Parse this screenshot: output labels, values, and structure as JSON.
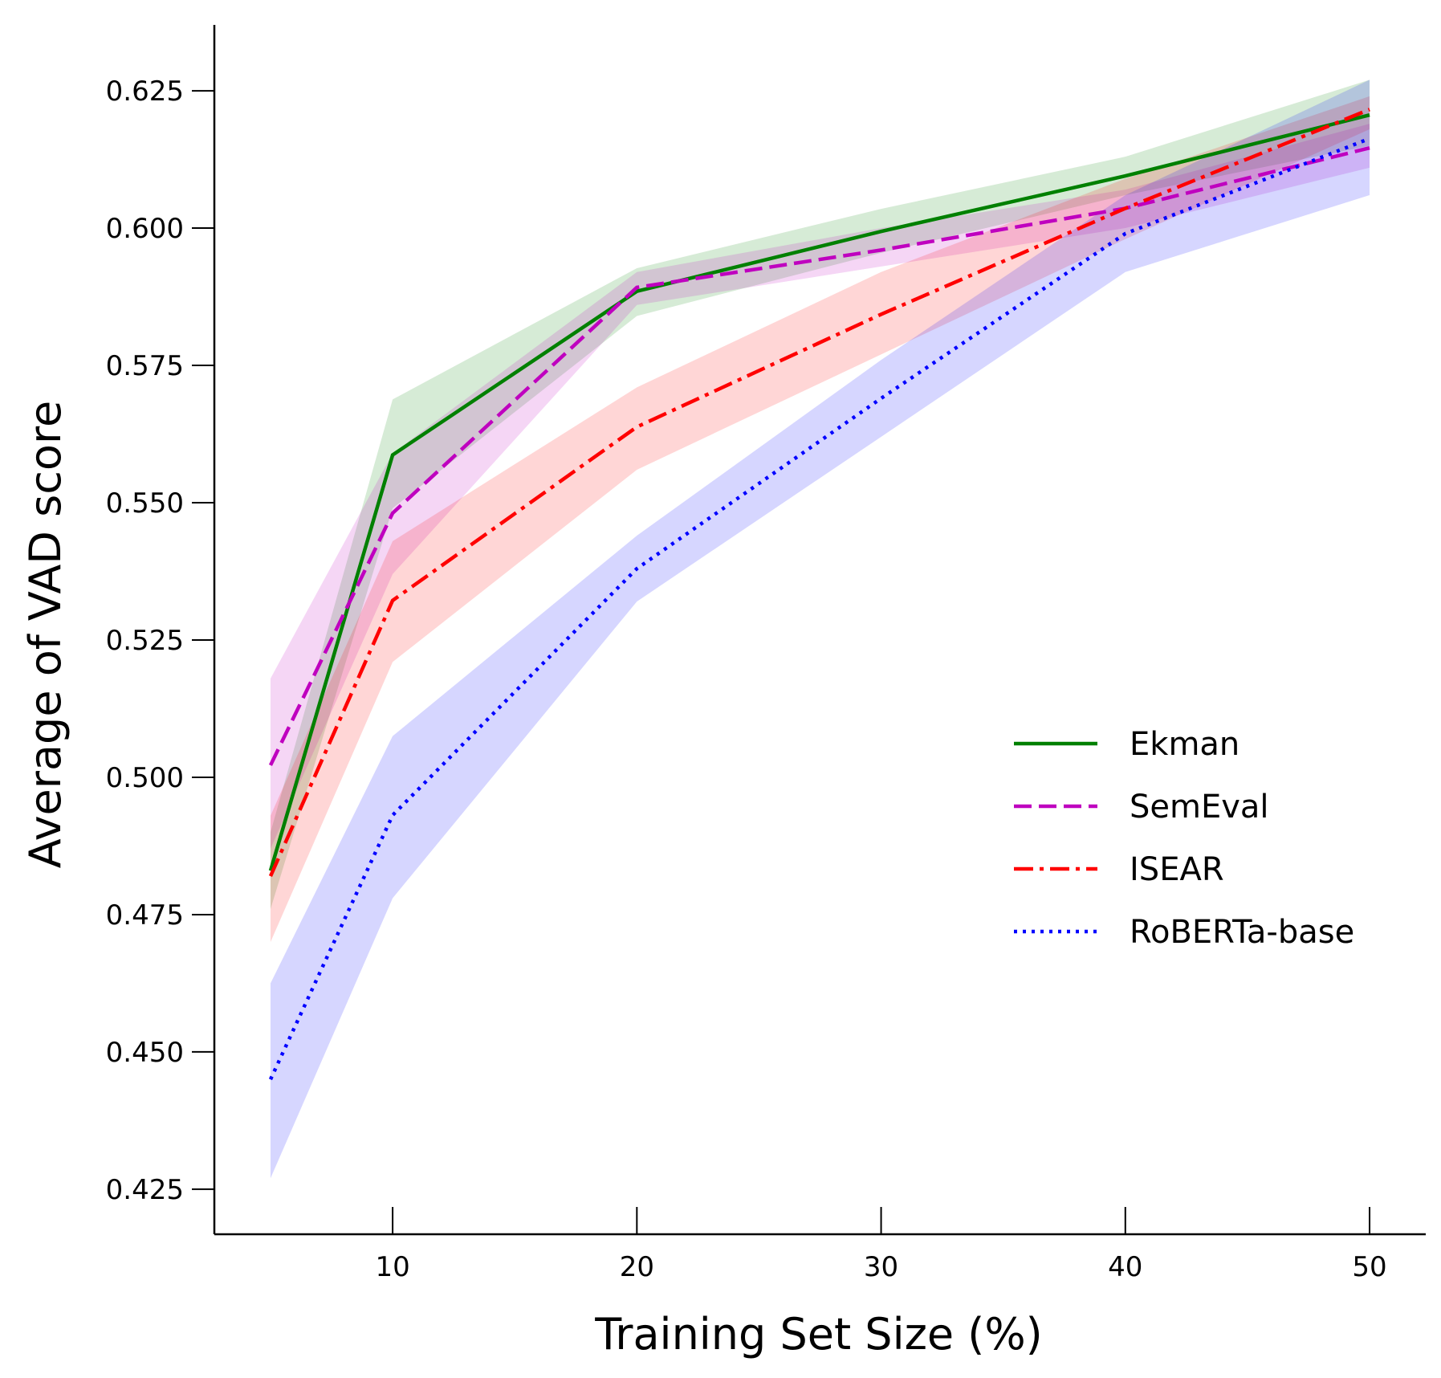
{
  "chart_data": {
    "type": "line",
    "title": "",
    "xlabel": "Training Set Size (%)",
    "ylabel": "Average of VAD score",
    "xlim": [
      2.7,
      52.3
    ],
    "ylim": [
      0.4168,
      0.637
    ],
    "xticks": [
      10,
      20,
      30,
      40,
      50
    ],
    "xtick_labels": [
      "10",
      "20",
      "30",
      "40",
      "50"
    ],
    "yticks": [
      0.425,
      0.45,
      0.475,
      0.5,
      0.525,
      0.55,
      0.575,
      0.6,
      0.625
    ],
    "ytick_labels": [
      "0.425",
      "0.450",
      "0.475",
      "0.500",
      "0.525",
      "0.550",
      "0.575",
      "0.600",
      "0.625"
    ],
    "grid": false,
    "legend_position": "center-right",
    "x": [
      5,
      10,
      20,
      30,
      40,
      50
    ],
    "series": [
      {
        "name": "Ekman",
        "color": "#008000",
        "style": "solid",
        "values": [
          0.483,
          0.5587,
          0.5885,
          0.5994,
          0.6095,
          0.6206
        ],
        "upper": [
          0.49,
          0.5688,
          0.5927,
          0.6035,
          0.613,
          0.627
        ],
        "lower": [
          0.476,
          0.549,
          0.584,
          0.5955,
          0.606,
          0.615
        ]
      },
      {
        "name": "SemEval",
        "color": "#bf00bf",
        "style": "dashed",
        "values": [
          0.5022,
          0.5481,
          0.5892,
          0.596,
          0.6036,
          0.6146
        ],
        "upper": [
          0.518,
          0.559,
          0.592,
          0.6,
          0.607,
          0.619
        ],
        "lower": [
          0.487,
          0.537,
          0.586,
          0.593,
          0.6,
          0.611
        ]
      },
      {
        "name": "ISEAR",
        "color": "#ff0000",
        "style": "dashdot",
        "values": [
          0.482,
          0.5322,
          0.5638,
          0.5843,
          0.6036,
          0.6216
        ],
        "upper": [
          0.493,
          0.543,
          0.571,
          0.592,
          0.609,
          0.624
        ],
        "lower": [
          0.47,
          0.521,
          0.556,
          0.577,
          0.598,
          0.618
        ]
      },
      {
        "name": "RoBERTa-base",
        "color": "#0000ff",
        "style": "dotted",
        "values": [
          0.445,
          0.4931,
          0.538,
          0.569,
          0.599,
          0.6163
        ],
        "upper": [
          0.4625,
          0.5075,
          0.544,
          0.576,
          0.606,
          0.627
        ],
        "lower": [
          0.427,
          0.478,
          0.532,
          0.562,
          0.592,
          0.606
        ]
      }
    ]
  }
}
